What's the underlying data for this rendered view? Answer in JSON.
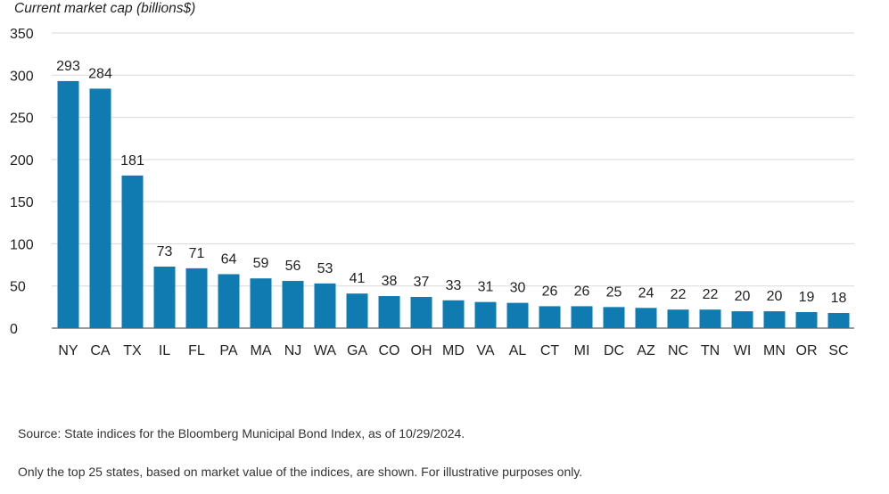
{
  "chart_data": {
    "type": "bar",
    "title": "",
    "ylabel": "Current market cap (billions$)",
    "xlabel": "",
    "ylim": [
      0,
      350
    ],
    "yticks": [
      0,
      50,
      100,
      150,
      200,
      250,
      300,
      350
    ],
    "grid": true,
    "categories": [
      "NY",
      "CA",
      "TX",
      "IL",
      "FL",
      "PA",
      "MA",
      "NJ",
      "WA",
      "GA",
      "CO",
      "OH",
      "MD",
      "VA",
      "AL",
      "CT",
      "MI",
      "DC",
      "AZ",
      "NC",
      "TN",
      "WI",
      "MN",
      "OR",
      "SC"
    ],
    "values": [
      293,
      284,
      181,
      73,
      71,
      64,
      59,
      56,
      53,
      41,
      38,
      37,
      33,
      31,
      30,
      26,
      26,
      25,
      24,
      22,
      22,
      20,
      20,
      19,
      18
    ],
    "bar_color": "#0f7bb0",
    "data_labels": true
  },
  "footer": {
    "source": "Source: State indices for the Bloomberg Municipal Bond Index, as of 10/29/2024.",
    "note": "Only the top 25 states, based on market value of the indices, are shown. For illustrative purposes only."
  }
}
